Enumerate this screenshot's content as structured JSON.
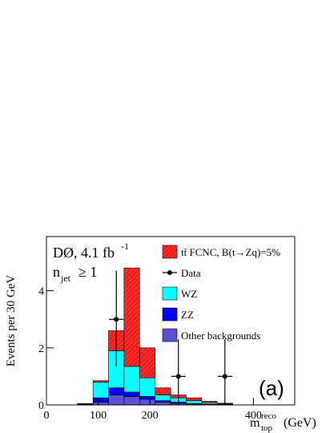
{
  "chart_data": {
    "type": "histogram",
    "bins": [
      0,
      30,
      60,
      90,
      120,
      150,
      180,
      210,
      240,
      270,
      300,
      330,
      360,
      390,
      420,
      450,
      480
    ],
    "series": [
      {
        "name": "tt̄ FCNC, B(t→Zq)=5%",
        "color": "#ff2a2a",
        "hatch": true,
        "values": [
          0,
          0,
          0,
          0.05,
          0.7,
          3.45,
          1.05,
          0.25,
          0.1,
          0.1,
          0.05,
          0.02,
          0,
          0,
          0,
          0
        ]
      },
      {
        "name": "WZ",
        "color": "#00ffff",
        "values": [
          0,
          0,
          0.02,
          0.55,
          1.3,
          0.9,
          0.65,
          0.2,
          0.15,
          0.1,
          0.05,
          0.02,
          0,
          0,
          0,
          0
        ]
      },
      {
        "name": "ZZ",
        "color": "#0000ff",
        "values": [
          0,
          0,
          0.01,
          0.15,
          0.25,
          0.15,
          0.1,
          0.05,
          0.05,
          0.02,
          0.01,
          0.01,
          0,
          0,
          0,
          0
        ]
      },
      {
        "name": "Other backgrounds",
        "color": "#5c4fd8",
        "values": [
          0,
          0,
          0.02,
          0.1,
          0.35,
          0.3,
          0.2,
          0.1,
          0.05,
          0.03,
          0.02,
          0.01,
          0,
          0,
          0,
          0
        ]
      }
    ],
    "data": {
      "name": "Data",
      "color": "#000000",
      "x": [
        135,
        255,
        345
      ],
      "values": [
        3,
        1,
        1
      ],
      "errors_low": [
        1.65,
        1,
        1
      ],
      "errors_high": [
        1.7,
        1.3,
        1.3
      ]
    },
    "xlim": [
      0,
      480
    ],
    "ylim": [
      0,
      5.9
    ],
    "xticks": [
      0,
      100,
      200,
      400
    ],
    "yticks": [
      0,
      2,
      4
    ],
    "y_label": "Events per 30 GeV",
    "x_label": {
      "main": "m",
      "sup": "reco",
      "sub": "top",
      "unit": "(GeV)"
    },
    "annotations": {
      "experiment": "DØ, 4.1 fb",
      "experiment_sup": "-1",
      "jets_main": "n",
      "jets_sub": "jet",
      "jets_rest": "≥ 1",
      "panel": "(a)"
    }
  }
}
